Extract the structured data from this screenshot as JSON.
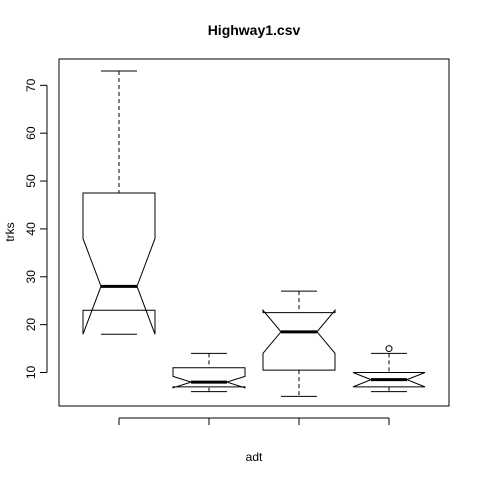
{
  "chart_data": {
    "type": "boxplot",
    "title": "Highway1.csv",
    "xlabel": "adt",
    "ylabel": "trks",
    "notched": true,
    "ylim": [
      3,
      75.5
    ],
    "yticks": [
      10,
      20,
      30,
      40,
      50,
      60,
      70
    ],
    "groups": [
      {
        "min": 18,
        "q1": 23,
        "median": 28,
        "q3": 47.5,
        "max": 73,
        "notch_lo": 18,
        "notch_hi": 38,
        "outliers": []
      },
      {
        "min": 6,
        "q1": 7,
        "median": 8,
        "q3": 11,
        "max": 14,
        "notch_lo": 6.8,
        "notch_hi": 9.2,
        "outliers": []
      },
      {
        "min": 5,
        "q1": 10.5,
        "median": 18.5,
        "q3": 22.5,
        "max": 27,
        "notch_lo": 14,
        "notch_hi": 23,
        "outliers": []
      },
      {
        "min": 6,
        "q1": 7,
        "median": 8.5,
        "q3": 10,
        "max": 14,
        "notch_lo": 7,
        "notch_hi": 10,
        "outliers": [
          15
        ]
      }
    ]
  }
}
